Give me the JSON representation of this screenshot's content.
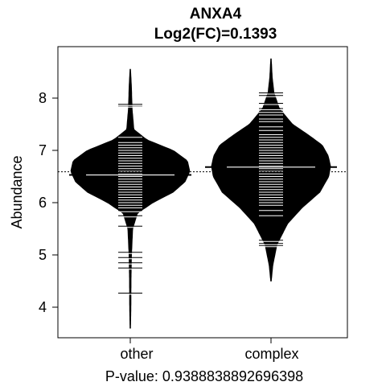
{
  "chart_data": {
    "type": "beanplot",
    "title": "ANXA4",
    "subtitle": "Log2(FC)=0.1393",
    "xlabel": "",
    "ylabel": "Abundance",
    "caption": "P-value: 0.9388838892696398",
    "categories": [
      "other",
      "complex"
    ],
    "ylim": [
      3.4,
      8.7
    ],
    "yticks": [
      4,
      5,
      6,
      7,
      8
    ],
    "grid": false,
    "overall_mean": 6.59,
    "group_means": [
      6.53,
      6.68
    ],
    "violin_profiles": [
      {
        "name": "other",
        "range": [
          3.6,
          8.55
        ],
        "profile": [
          [
            3.6,
            0.004
          ],
          [
            4.0,
            0.01
          ],
          [
            4.5,
            0.012
          ],
          [
            5.0,
            0.02
          ],
          [
            5.5,
            0.04
          ],
          [
            5.8,
            0.12
          ],
          [
            6.0,
            0.38
          ],
          [
            6.2,
            0.72
          ],
          [
            6.4,
            0.92
          ],
          [
            6.6,
            1.0
          ],
          [
            6.8,
            0.96
          ],
          [
            7.0,
            0.72
          ],
          [
            7.2,
            0.28
          ],
          [
            7.4,
            0.06
          ],
          [
            7.8,
            0.03
          ],
          [
            8.2,
            0.02
          ],
          [
            8.55,
            0.004
          ]
        ]
      },
      {
        "name": "complex",
        "range": [
          4.5,
          8.75
        ],
        "profile": [
          [
            4.5,
            0.004
          ],
          [
            4.8,
            0.03
          ],
          [
            5.2,
            0.1
          ],
          [
            5.6,
            0.28
          ],
          [
            5.9,
            0.52
          ],
          [
            6.2,
            0.82
          ],
          [
            6.5,
            0.97
          ],
          [
            6.7,
            1.0
          ],
          [
            6.9,
            0.96
          ],
          [
            7.1,
            0.86
          ],
          [
            7.3,
            0.62
          ],
          [
            7.5,
            0.36
          ],
          [
            7.8,
            0.14
          ],
          [
            8.1,
            0.05
          ],
          [
            8.4,
            0.02
          ],
          [
            8.75,
            0.004
          ]
        ]
      }
    ],
    "observations": [
      [
        4.27,
        4.75,
        4.85,
        4.95,
        5.05,
        5.55,
        5.75,
        5.85,
        5.9,
        5.95,
        6.0,
        6.05,
        6.1,
        6.15,
        6.2,
        6.25,
        6.3,
        6.35,
        6.4,
        6.45,
        6.5,
        6.55,
        6.6,
        6.65,
        6.7,
        6.75,
        6.8,
        6.85,
        6.9,
        6.95,
        7.0,
        7.05,
        7.1,
        7.15,
        7.25,
        7.85,
        7.88
      ],
      [
        5.18,
        5.22,
        5.28,
        5.75,
        5.85,
        5.95,
        6.0,
        6.05,
        6.1,
        6.15,
        6.2,
        6.25,
        6.3,
        6.35,
        6.4,
        6.45,
        6.5,
        6.55,
        6.6,
        6.65,
        6.7,
        6.75,
        6.8,
        6.85,
        6.9,
        6.95,
        7.0,
        7.05,
        7.1,
        7.15,
        7.2,
        7.25,
        7.3,
        7.38,
        7.45,
        7.55,
        7.6,
        7.7,
        7.75,
        7.8,
        7.9,
        8.05,
        8.1
      ]
    ]
  }
}
